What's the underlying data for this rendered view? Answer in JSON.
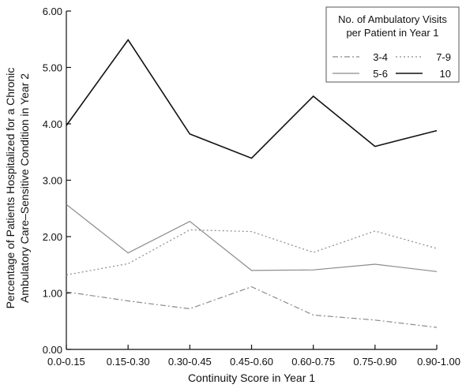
{
  "chart_data": {
    "type": "line",
    "categories": [
      "0.0-0.15",
      "0.15-0.30",
      "0.30-0.45",
      "0.45-0.60",
      "0.60-0.75",
      "0.75-0.90",
      "0.90-1.00"
    ],
    "xlabel": "Continuity Score in Year 1",
    "ylabel_lines": [
      "Percentage of Patients Hospitalized for a Chronic",
      "Ambulatory Care–Sensitive Condition in Year 2"
    ],
    "ylim": [
      0,
      6
    ],
    "yticks": [
      "0.00",
      "1.00",
      "2.00",
      "3.00",
      "4.00",
      "5.00",
      "6.00"
    ],
    "legend": {
      "title_lines": [
        "No. of Ambulatory Visits",
        "per Patient in Year 1"
      ],
      "placement": "top-right"
    },
    "series": [
      {
        "name": "3-4",
        "values": [
          1.02,
          0.86,
          0.72,
          1.11,
          0.61,
          0.52,
          0.39
        ],
        "color": "#8a8a8a",
        "style": "dashdot"
      },
      {
        "name": "5-6",
        "values": [
          2.57,
          1.71,
          2.27,
          1.4,
          1.41,
          1.51,
          1.38
        ],
        "color": "#8a8a8a",
        "style": "solid"
      },
      {
        "name": "7-9",
        "values": [
          1.32,
          1.52,
          2.12,
          2.09,
          1.72,
          2.1,
          1.79
        ],
        "color": "#8a8a8a",
        "style": "dotted"
      },
      {
        "name": "10",
        "values": [
          3.97,
          5.49,
          3.82,
          3.39,
          4.49,
          3.6,
          3.88
        ],
        "color": "#111111",
        "style": "solid"
      }
    ]
  }
}
